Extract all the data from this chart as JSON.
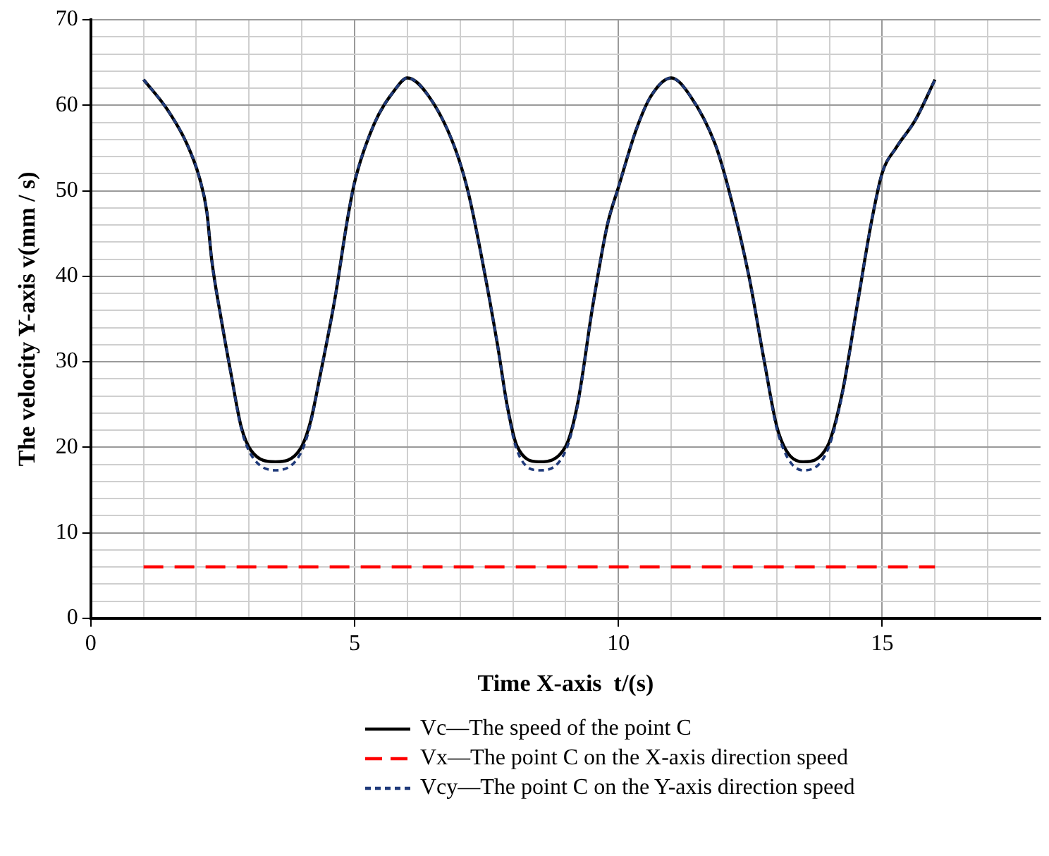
{
  "chart_data": {
    "type": "line",
    "xlabel": "Time X-axis  t/(s)",
    "ylabel": "The velocity Y-axis v(mm / s)",
    "xlim": [
      0,
      18
    ],
    "ylim": [
      0,
      70
    ],
    "xticks": [
      0,
      {
        "value": 1,
        "label": null
      },
      {
        "value": 2,
        "label": null
      },
      {
        "value": 3,
        "label": null
      },
      {
        "value": 4,
        "label": null
      },
      5,
      {
        "value": 6,
        "label": null
      },
      {
        "value": 7,
        "label": null
      },
      {
        "value": 8,
        "label": null
      },
      {
        "value": 9,
        "label": null
      },
      10,
      {
        "value": 11,
        "label": null
      },
      {
        "value": 12,
        "label": null
      },
      {
        "value": 13,
        "label": null
      },
      {
        "value": 14,
        "label": null
      },
      15,
      {
        "value": 16,
        "label": null
      },
      {
        "value": 17,
        "label": null
      }
    ],
    "yticks": [
      0,
      {
        "value": 2,
        "label": null
      },
      {
        "value": 4,
        "label": null
      },
      {
        "value": 6,
        "label": null
      },
      {
        "value": 8,
        "label": null
      },
      10,
      {
        "value": 12,
        "label": null
      },
      {
        "value": 14,
        "label": null
      },
      {
        "value": 16,
        "label": null
      },
      {
        "value": 18,
        "label": null
      },
      20,
      {
        "value": 22,
        "label": null
      },
      {
        "value": 24,
        "label": null
      },
      {
        "value": 26,
        "label": null
      },
      {
        "value": 28,
        "label": null
      },
      30,
      {
        "value": 32,
        "label": null
      },
      {
        "value": 34,
        "label": null
      },
      {
        "value": 36,
        "label": null
      },
      {
        "value": 38,
        "label": null
      },
      40,
      {
        "value": 42,
        "label": null
      },
      {
        "value": 44,
        "label": null
      },
      {
        "value": 46,
        "label": null
      },
      {
        "value": 48,
        "label": null
      },
      50,
      {
        "value": 52,
        "label": null
      },
      {
        "value": 54,
        "label": null
      },
      {
        "value": 56,
        "label": null
      },
      {
        "value": 58,
        "label": null
      },
      60,
      {
        "value": 62,
        "label": null
      },
      {
        "value": 64,
        "label": null
      },
      {
        "value": 66,
        "label": null
      },
      {
        "value": 68,
        "label": null
      },
      70
    ],
    "grid": true,
    "legend": "bottom",
    "marker": "none",
    "series": [
      {
        "name": "Vc—The speed of the point C",
        "color": "#000000",
        "line_style": "solid",
        "x": [
          1,
          1.45,
          1.82,
          2.06,
          2.2,
          2.29,
          2.48,
          2.66,
          2.85,
          3.04,
          3.5,
          3.97,
          4.16,
          4.35,
          4.63,
          4.86,
          5,
          5.37,
          5.75,
          6,
          6.4,
          6.87,
          7.15,
          7.43,
          7.71,
          7.9,
          8.08,
          8.5,
          9,
          9.23,
          9.51,
          9.79,
          10,
          10.34,
          10.62,
          11,
          11.36,
          11.83,
          12.1,
          12.48,
          12.76,
          13.03,
          13.5,
          13.96,
          14.24,
          14.52,
          14.8,
          15,
          15.26,
          15.63,
          16
        ],
        "values": [
          63,
          59.5,
          55.5,
          51.5,
          47.5,
          42,
          34.7,
          28.5,
          22.4,
          19.6,
          18.3,
          19.8,
          22.9,
          28.5,
          37.5,
          46.5,
          51,
          57.8,
          61.7,
          63.2,
          61.1,
          55.5,
          49.9,
          41.5,
          31.9,
          24.6,
          20.1,
          18.3,
          20.1,
          25.2,
          36.4,
          46,
          50.4,
          57.2,
          61.1,
          63.2,
          61.1,
          55.5,
          49.9,
          39.8,
          30.2,
          21.8,
          18.3,
          20.1,
          26.3,
          36.4,
          46.5,
          52.1,
          55,
          58.3,
          63
        ]
      },
      {
        "name": "Vx—The point C on the X-axis direction speed",
        "color": "#ff0000",
        "line_style": "dashed",
        "x": [
          1,
          16
        ],
        "values": [
          6,
          6
        ]
      },
      {
        "name": "Vcy—The point C on the Y-axis direction speed",
        "color": "#1f3a7a",
        "line_style": "dotted",
        "x": [
          1,
          1.45,
          1.82,
          2.06,
          2.2,
          2.29,
          2.48,
          2.66,
          2.85,
          3.04,
          3.5,
          3.97,
          4.16,
          4.35,
          4.63,
          4.86,
          5,
          5.37,
          5.75,
          6,
          6.4,
          6.87,
          7.15,
          7.43,
          7.71,
          7.9,
          8.08,
          8.5,
          9,
          9.23,
          9.51,
          9.79,
          10,
          10.34,
          10.62,
          11,
          11.36,
          11.83,
          12.1,
          12.48,
          12.76,
          13.03,
          13.5,
          13.96,
          14.24,
          14.52,
          14.8,
          15,
          15.26,
          15.63,
          16
        ],
        "values": [
          63,
          59.5,
          55.5,
          51.5,
          47.5,
          42,
          34.7,
          28.5,
          22.2,
          19.1,
          17.3,
          19.2,
          22.6,
          28.5,
          37.5,
          46.5,
          51,
          57.8,
          61.7,
          63.2,
          61.1,
          55.5,
          49.9,
          41.5,
          31.9,
          24.4,
          19.6,
          17.3,
          19.6,
          25.0,
          36.4,
          46,
          50.4,
          57.2,
          61.1,
          63.2,
          61.1,
          55.5,
          49.9,
          39.8,
          30.2,
          21.5,
          17.3,
          19.6,
          26.1,
          36.4,
          46.5,
          52.1,
          55,
          58.3,
          63
        ]
      }
    ]
  }
}
